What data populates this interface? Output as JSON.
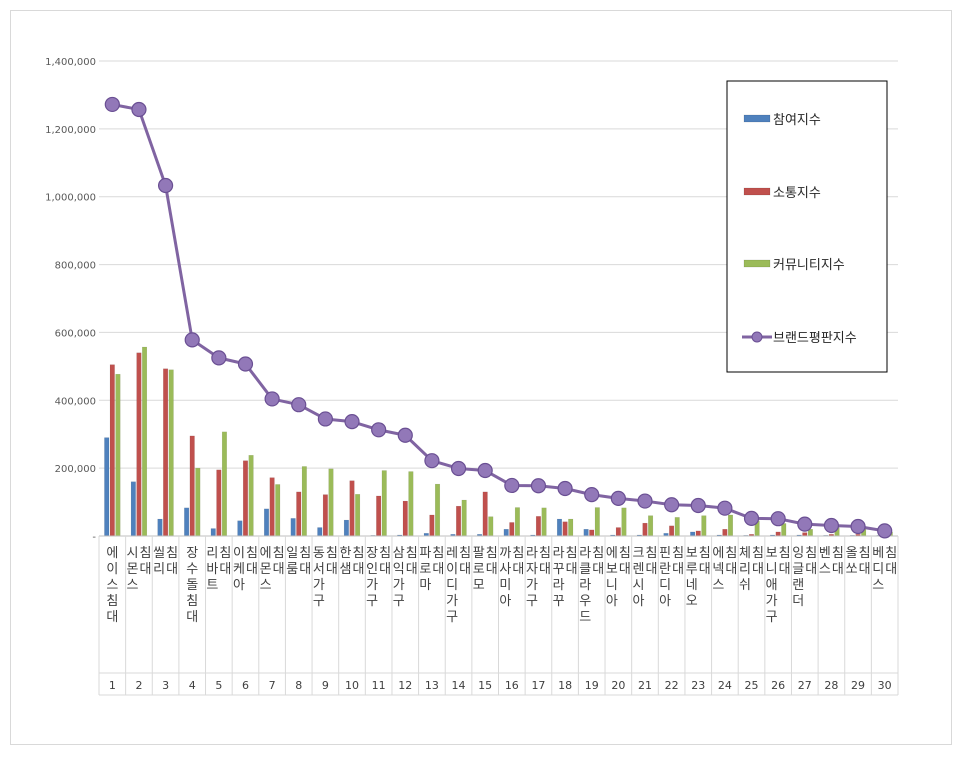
{
  "chart_data": {
    "type": "bar",
    "categories": [
      "에이스침대",
      "시몬스 침대",
      "씰리 침대",
      "장수돌침대",
      "리바트 침대",
      "이케아 침대",
      "에몬스 침대",
      "일룸 침대",
      "동서가구 침대",
      "한샘 침대",
      "장인가구 침대",
      "삼익가구 침대",
      "파로마 침대",
      "레이디가구 침대",
      "팔로모 침대",
      "까사미아 침대",
      "라자가구 침대",
      "라꾸라꾸 침대",
      "라클라우드 침대",
      "에보니아 침대",
      "크렌시아 침대",
      "핀란디아 침대",
      "보루네오 침대",
      "에넥스 침대",
      "체리쉬 침대",
      "보니애가구 침대",
      "잉글랜더 침대",
      "벤스 침대",
      "올쏘 침대",
      "베디스 침대"
    ],
    "ranks": [
      "1",
      "2",
      "3",
      "4",
      "5",
      "6",
      "7",
      "8",
      "9",
      "10",
      "11",
      "12",
      "13",
      "14",
      "15",
      "16",
      "17",
      "18",
      "19",
      "20",
      "21",
      "22",
      "23",
      "24",
      "25",
      "26",
      "27",
      "28",
      "29",
      "30"
    ],
    "series": [
      {
        "name": "참여지수",
        "kind": "bar",
        "color": "#4f81bd",
        "values": [
          290000,
          160000,
          50000,
          83000,
          22000,
          45000,
          80000,
          52000,
          25000,
          47000,
          2000,
          3000,
          8000,
          5000,
          5000,
          20000,
          3000,
          50000,
          20000,
          3000,
          3000,
          8000,
          12000,
          3000,
          2000,
          3000,
          3000,
          2000,
          2000,
          2000
        ]
      },
      {
        "name": "소통지수",
        "kind": "bar",
        "color": "#c0504d",
        "values": [
          505000,
          540000,
          493000,
          295000,
          195000,
          222000,
          172000,
          130000,
          122000,
          163000,
          118000,
          103000,
          62000,
          88000,
          130000,
          40000,
          58000,
          42000,
          18000,
          25000,
          38000,
          30000,
          15000,
          20000,
          5000,
          12000,
          10000,
          5000,
          5000,
          3000
        ]
      },
      {
        "name": "커뮤니티지수",
        "kind": "bar",
        "color": "#9bbb59",
        "values": [
          477000,
          557000,
          490000,
          200000,
          307000,
          238000,
          152000,
          205000,
          198000,
          123000,
          193000,
          190000,
          153000,
          106000,
          57000,
          84000,
          83000,
          50000,
          84000,
          83000,
          60000,
          55000,
          60000,
          62000,
          45000,
          37000,
          20000,
          25000,
          21000,
          12000
        ]
      },
      {
        "name": "브랜드평판지수",
        "kind": "line",
        "color": "#8064a2",
        "values": [
          1272000,
          1257000,
          1033000,
          578000,
          525000,
          507000,
          404000,
          387000,
          345000,
          337000,
          313000,
          297000,
          222000,
          199000,
          193000,
          149000,
          148000,
          140000,
          122000,
          111000,
          103000,
          92000,
          90000,
          82000,
          52000,
          51000,
          35000,
          31000,
          28000,
          15000
        ]
      }
    ],
    "ylim": [
      0,
      1400000
    ],
    "yticks": [
      0,
      200000,
      400000,
      600000,
      800000,
      1000000,
      1200000,
      1400000
    ],
    "ytick_labels": [
      "-",
      "200,000",
      "400,000",
      "600,000",
      "800,000",
      "1,000,000",
      "1,200,000",
      "1,400,000"
    ],
    "grid": true,
    "legend_position": "right",
    "title": "",
    "xlabel": "",
    "ylabel": ""
  }
}
